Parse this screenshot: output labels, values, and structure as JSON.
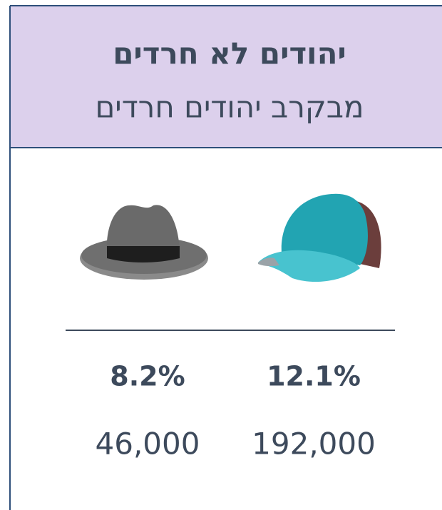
{
  "header": {
    "title": "יהודים לא חרדים",
    "subtitle": "מבקרב יהודים חרדים"
  },
  "columns": [
    {
      "percent": "8.2%",
      "count": "46,000"
    },
    {
      "percent": "12.1%",
      "count": "192,000"
    }
  ]
}
